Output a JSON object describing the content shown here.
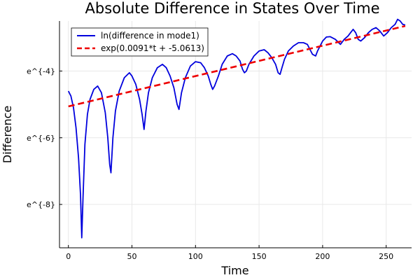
{
  "chart_data": {
    "type": "line",
    "title": "Absolute Difference in States Over Time",
    "xlabel": "Time",
    "ylabel": "Difference",
    "xlim": [
      -7,
      270
    ],
    "ylim": [
      -9.3,
      -2.5
    ],
    "y_scale": "log (natural), shown as exponent of e",
    "x_ticks": [
      0,
      50,
      100,
      150,
      200,
      250
    ],
    "x_tick_labels": [
      "0",
      "50",
      "100",
      "150",
      "200",
      "250"
    ],
    "y_ticks": [
      -8,
      -6,
      -4
    ],
    "y_tick_labels": [
      "e^{-8}",
      "e^{-6}",
      "e^{-4}"
    ],
    "grid": true,
    "legend_position": "top-left",
    "series": [
      {
        "name": "ln(difference in mode1)",
        "color": "#0000dd",
        "style": "solid",
        "x": [
          0,
          2,
          4,
          6,
          8,
          9.5,
          10.5,
          11.5,
          13,
          15,
          17,
          20,
          23,
          26,
          29,
          31,
          32.5,
          33.5,
          35,
          37,
          40,
          44,
          48,
          50,
          53,
          56,
          58,
          59.5,
          61,
          63,
          66,
          70,
          74,
          77,
          80,
          83,
          85.5,
          87,
          89,
          92,
          96,
          100,
          104,
          107,
          110,
          112,
          113.5,
          115,
          118,
          121,
          125,
          129,
          132,
          135,
          137,
          138.5,
          140,
          142,
          146,
          150,
          154,
          157,
          160,
          163,
          165,
          166.5,
          168,
          170,
          173,
          177,
          181,
          185,
          188,
          190,
          192,
          194.5,
          196,
          198,
          200,
          203,
          206,
          210,
          214,
          217,
          220,
          222,
          224,
          226,
          228,
          230,
          233,
          236,
          239,
          242,
          245,
          248,
          251,
          254,
          257,
          259,
          261,
          263,
          265
        ],
        "y": [
          -4.6,
          -4.75,
          -5.1,
          -5.7,
          -6.6,
          -7.7,
          -9.0,
          -7.8,
          -6.2,
          -5.3,
          -4.85,
          -4.55,
          -4.45,
          -4.65,
          -5.25,
          -6.0,
          -6.8,
          -7.05,
          -6.0,
          -5.2,
          -4.6,
          -4.2,
          -4.05,
          -4.15,
          -4.4,
          -4.85,
          -5.3,
          -5.75,
          -5.2,
          -4.65,
          -4.2,
          -3.9,
          -3.8,
          -3.9,
          -4.15,
          -4.5,
          -5.0,
          -5.15,
          -4.65,
          -4.2,
          -3.85,
          -3.72,
          -3.75,
          -3.9,
          -4.15,
          -4.4,
          -4.55,
          -4.45,
          -4.15,
          -3.8,
          -3.55,
          -3.48,
          -3.55,
          -3.7,
          -3.95,
          -4.05,
          -4.0,
          -3.8,
          -3.55,
          -3.4,
          -3.36,
          -3.45,
          -3.6,
          -3.8,
          -4.05,
          -4.1,
          -3.9,
          -3.65,
          -3.4,
          -3.25,
          -3.15,
          -3.15,
          -3.2,
          -3.35,
          -3.5,
          -3.55,
          -3.4,
          -3.25,
          -3.1,
          -2.98,
          -2.97,
          -3.05,
          -3.2,
          -3.05,
          -2.95,
          -2.85,
          -2.75,
          -2.85,
          -3.05,
          -3.1,
          -3.0,
          -2.85,
          -2.75,
          -2.7,
          -2.8,
          -2.95,
          -2.85,
          -2.7,
          -2.6,
          -2.45,
          -2.5,
          -2.6,
          -2.62
        ]
      },
      {
        "name": "exp(0.0091*t + -5.0613)",
        "color": "#ee0000",
        "style": "dashed",
        "slope": 0.0091,
        "intercept": -5.0613
      }
    ]
  }
}
